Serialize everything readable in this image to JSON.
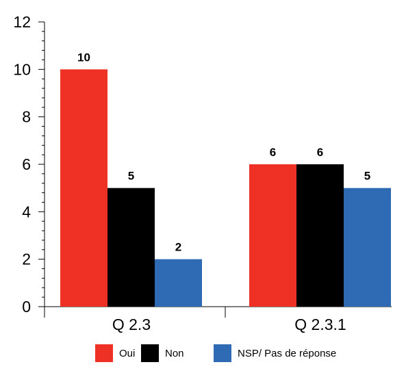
{
  "chart_data": {
    "type": "bar",
    "categories": [
      "Q 2.3",
      "Q 2.3.1"
    ],
    "series": [
      {
        "name": "Oui",
        "values": [
          10,
          6
        ],
        "color": "#ee3124"
      },
      {
        "name": "Non",
        "values": [
          5,
          6
        ],
        "color": "#000000"
      },
      {
        "name": "NSP/ Pas de réponse",
        "values": [
          2,
          5
        ],
        "color": "#2f6ab5"
      }
    ],
    "ylim": [
      0,
      12
    ],
    "yticks": [
      0,
      2,
      4,
      6,
      8,
      10,
      12
    ],
    "title": "",
    "xlabel": "",
    "ylabel": "",
    "legend_position": "bottom",
    "grid": false
  }
}
